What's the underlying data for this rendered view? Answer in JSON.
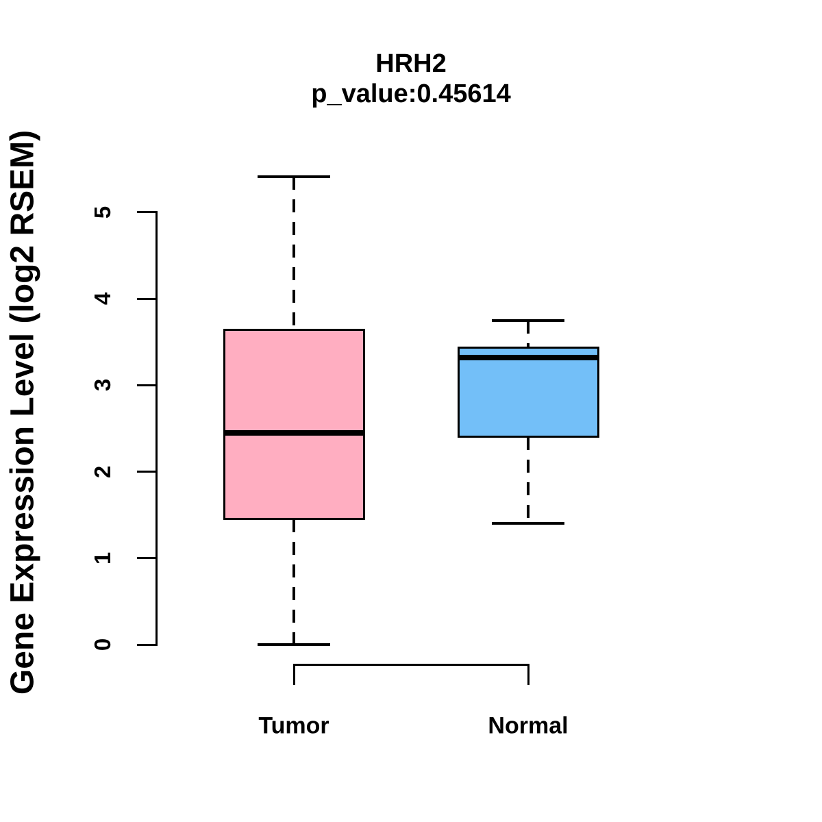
{
  "title": "HRH2",
  "subtitle": "p_value:0.45614",
  "chart_data": {
    "type": "boxplot",
    "title": "HRH2",
    "subtitle": "p_value:0.45614",
    "xlabel": "",
    "ylabel": "Gene Expression Level (log2 RSEM)",
    "ylim": [
      0,
      5.45
    ],
    "yticks": [
      0,
      1,
      2,
      3,
      4,
      5
    ],
    "categories": [
      "Tumor",
      "Normal"
    ],
    "grid": false,
    "legend": "none",
    "series": [
      {
        "name": "Tumor",
        "color": "#FFAEC1",
        "border_color": "#000000",
        "whisker_low": 0.0,
        "q1": 1.45,
        "median": 2.45,
        "q3": 3.64,
        "whisker_high": 5.41
      },
      {
        "name": "Normal",
        "color": "#73BFF8",
        "border_color": "#000000",
        "whisker_low": 1.4,
        "q1": 2.4,
        "median": 3.32,
        "q3": 3.43,
        "whisker_high": 3.75
      }
    ]
  }
}
